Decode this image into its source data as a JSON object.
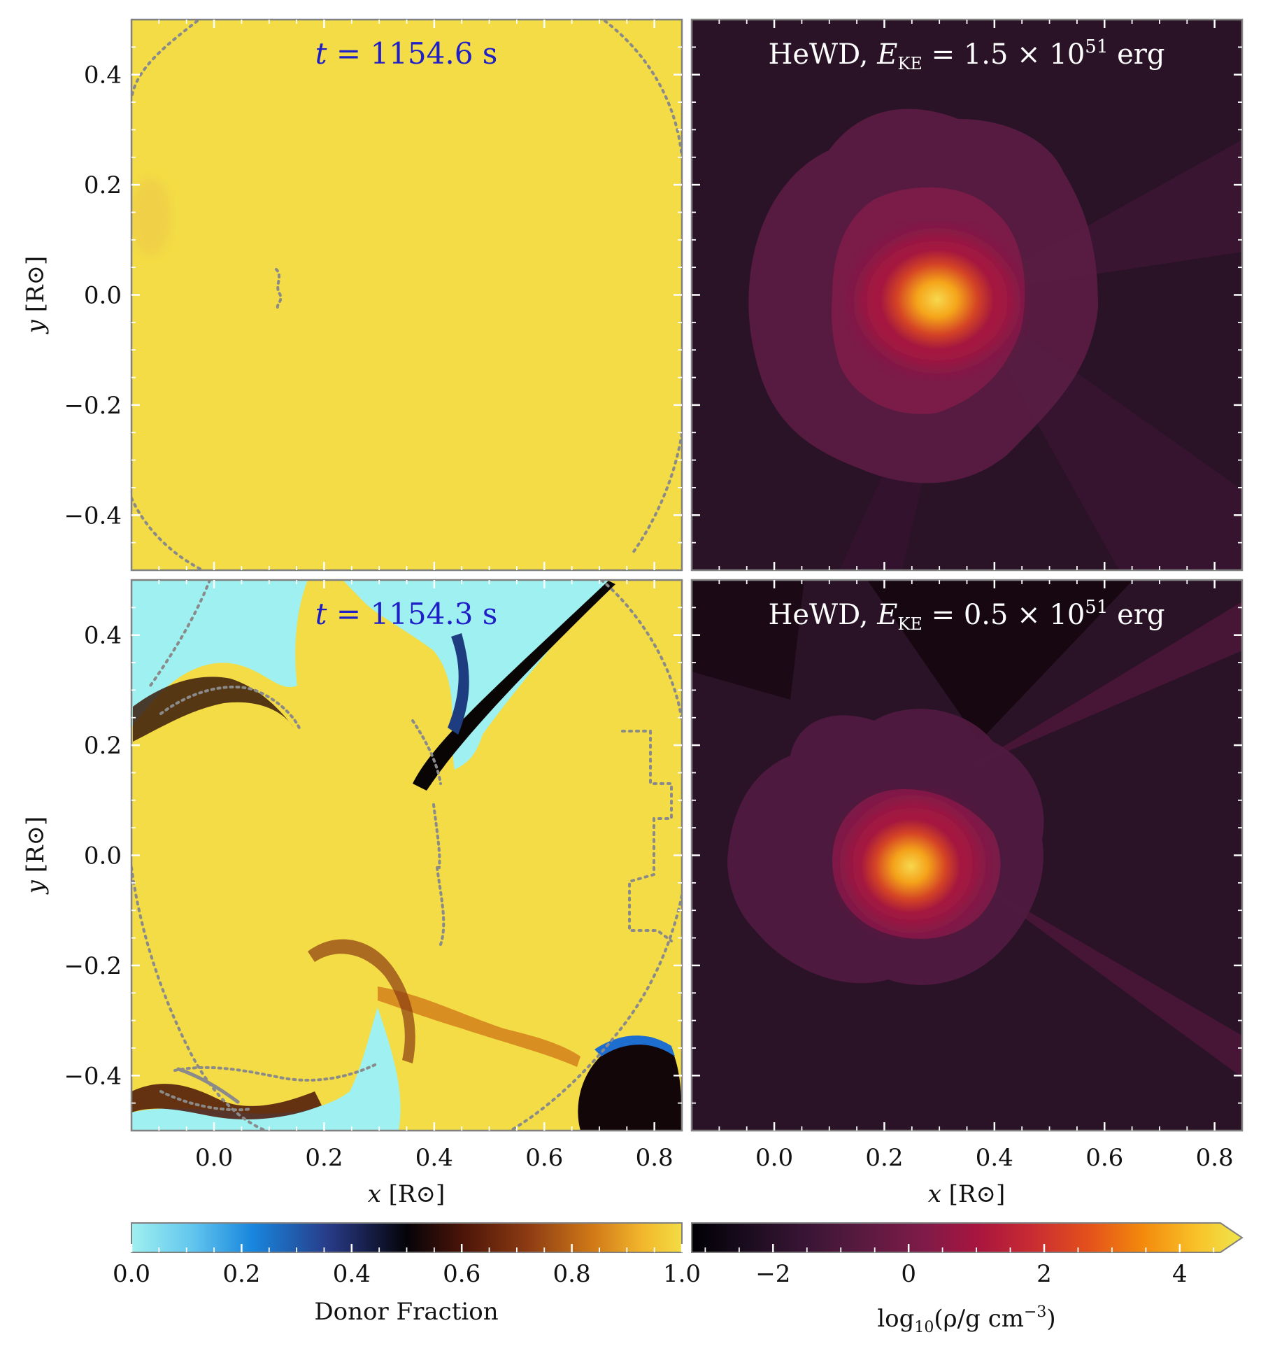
{
  "chart_data": [
    {
      "type": "heatmap",
      "panel": "top-left",
      "quantity": "Donor Fraction",
      "annotation": "t = 1154.6 s",
      "annotation_color": "#1f1fc8",
      "xlim": [
        -0.15,
        0.85
      ],
      "ylim": [
        -0.5,
        0.5
      ],
      "ylabel": "y [R⊙]",
      "yticks": [
        -0.4,
        -0.2,
        0.0,
        0.2,
        0.4
      ],
      "ytick_labels": [
        "−0.4",
        "−0.2",
        "0.0",
        "0.2",
        "0.4"
      ],
      "dominant_value": 1.0,
      "contour_style": "dotted gray"
    },
    {
      "type": "heatmap",
      "panel": "top-right",
      "quantity": "log10(rho/g cm^-3)",
      "annotation": "HeWD, E_KE = 1.5 × 10^51 erg",
      "annotation_color": "#ffffff",
      "xlim": [
        -0.15,
        0.85
      ],
      "ylim": [
        -0.5,
        0.5
      ],
      "density_peak_center": [
        0.3,
        -0.01
      ],
      "peak_value": 4
    },
    {
      "type": "heatmap",
      "panel": "bottom-left",
      "quantity": "Donor Fraction",
      "annotation": "t = 1154.3 s",
      "annotation_color": "#1f1fc8",
      "xlim": [
        -0.15,
        0.85
      ],
      "ylim": [
        -0.5,
        0.5
      ],
      "xlabel": "x [R⊙]",
      "ylabel": "y [R⊙]",
      "xticks": [
        0.0,
        0.2,
        0.4,
        0.6,
        0.8
      ],
      "xtick_labels": [
        "0.0",
        "0.2",
        "0.4",
        "0.6",
        "0.8"
      ],
      "yticks": [
        -0.4,
        -0.2,
        0.0,
        0.2,
        0.4
      ],
      "ytick_labels": [
        "−0.4",
        "−0.2",
        "0.0",
        "0.2",
        "0.4"
      ],
      "contour_style": "dotted gray"
    },
    {
      "type": "heatmap",
      "panel": "bottom-right",
      "quantity": "log10(rho/g cm^-3)",
      "annotation": "HeWD, E_KE = 0.5 × 10^51 erg",
      "annotation_color": "#ffffff",
      "xlim": [
        -0.15,
        0.85
      ],
      "ylim": [
        -0.5,
        0.5
      ],
      "xlabel": "x [R⊙]",
      "xticks": [
        0.0,
        0.2,
        0.4,
        0.6,
        0.8
      ],
      "xtick_labels": [
        "0.0",
        "0.2",
        "0.4",
        "0.6",
        "0.8"
      ],
      "density_peak_center": [
        0.25,
        -0.02
      ],
      "peak_value": 4
    }
  ],
  "labels": {
    "top_left_annotation_t": "t",
    "top_left_annotation_rest": " = 1154.6 s",
    "bottom_left_annotation_t": "t",
    "bottom_left_annotation_rest": " = 1154.3 s",
    "top_right_annotation_prefix": "HeWD, ",
    "top_right_annotation_E": "E",
    "top_right_annotation_sub": "KE",
    "top_right_annotation_value": " = 1.5 × 10",
    "top_right_annotation_exp": "51",
    "top_right_annotation_unit": " erg",
    "bottom_right_annotation_prefix": "HeWD, ",
    "bottom_right_annotation_E": "E",
    "bottom_right_annotation_sub": "KE",
    "bottom_right_annotation_value": " = 0.5 × 10",
    "bottom_right_annotation_exp": "51",
    "bottom_right_annotation_unit": " erg",
    "ylabel_var": "y",
    "ylabel_unit": " [R⊙]",
    "xlabel_var": "x",
    "xlabel_unit": " [R⊙]"
  },
  "colorbars": [
    {
      "label": "Donor Fraction",
      "range": [
        0.0,
        1.0
      ],
      "ticks": [
        0.0,
        0.2,
        0.4,
        0.6,
        0.8,
        1.0
      ],
      "tick_labels": [
        "0.0",
        "0.2",
        "0.4",
        "0.6",
        "0.8",
        "1.0"
      ],
      "colors": [
        "#9ff0f0",
        "#62c6ee",
        "#1886dd",
        "#283a86",
        "#050308",
        "#4a1408",
        "#8c3b13",
        "#d17a18",
        "#f2b82c",
        "#f3dc45"
      ]
    },
    {
      "label_main": "log",
      "label_sub": "10",
      "label_rest": "(ρ/g cm",
      "label_exp": "−3",
      "label_close": ")",
      "range": [
        -3.2,
        4.6
      ],
      "extend": "max",
      "ticks": [
        -2,
        0,
        2,
        4
      ],
      "tick_labels": [
        "−2",
        "0",
        "2",
        "4"
      ],
      "colors": [
        "#000004",
        "#1b0c1f",
        "#371433",
        "#561a3f",
        "#7e1b48",
        "#a8153f",
        "#c92c32",
        "#e4501c",
        "#f38a0c",
        "#f8c32a",
        "#f0e64d"
      ]
    }
  ],
  "colors": {
    "frame": "#808080",
    "donor_yellow": "#f3dc45",
    "bg_dark": "#2a1227",
    "contour_gray": "#8a8a8a"
  }
}
